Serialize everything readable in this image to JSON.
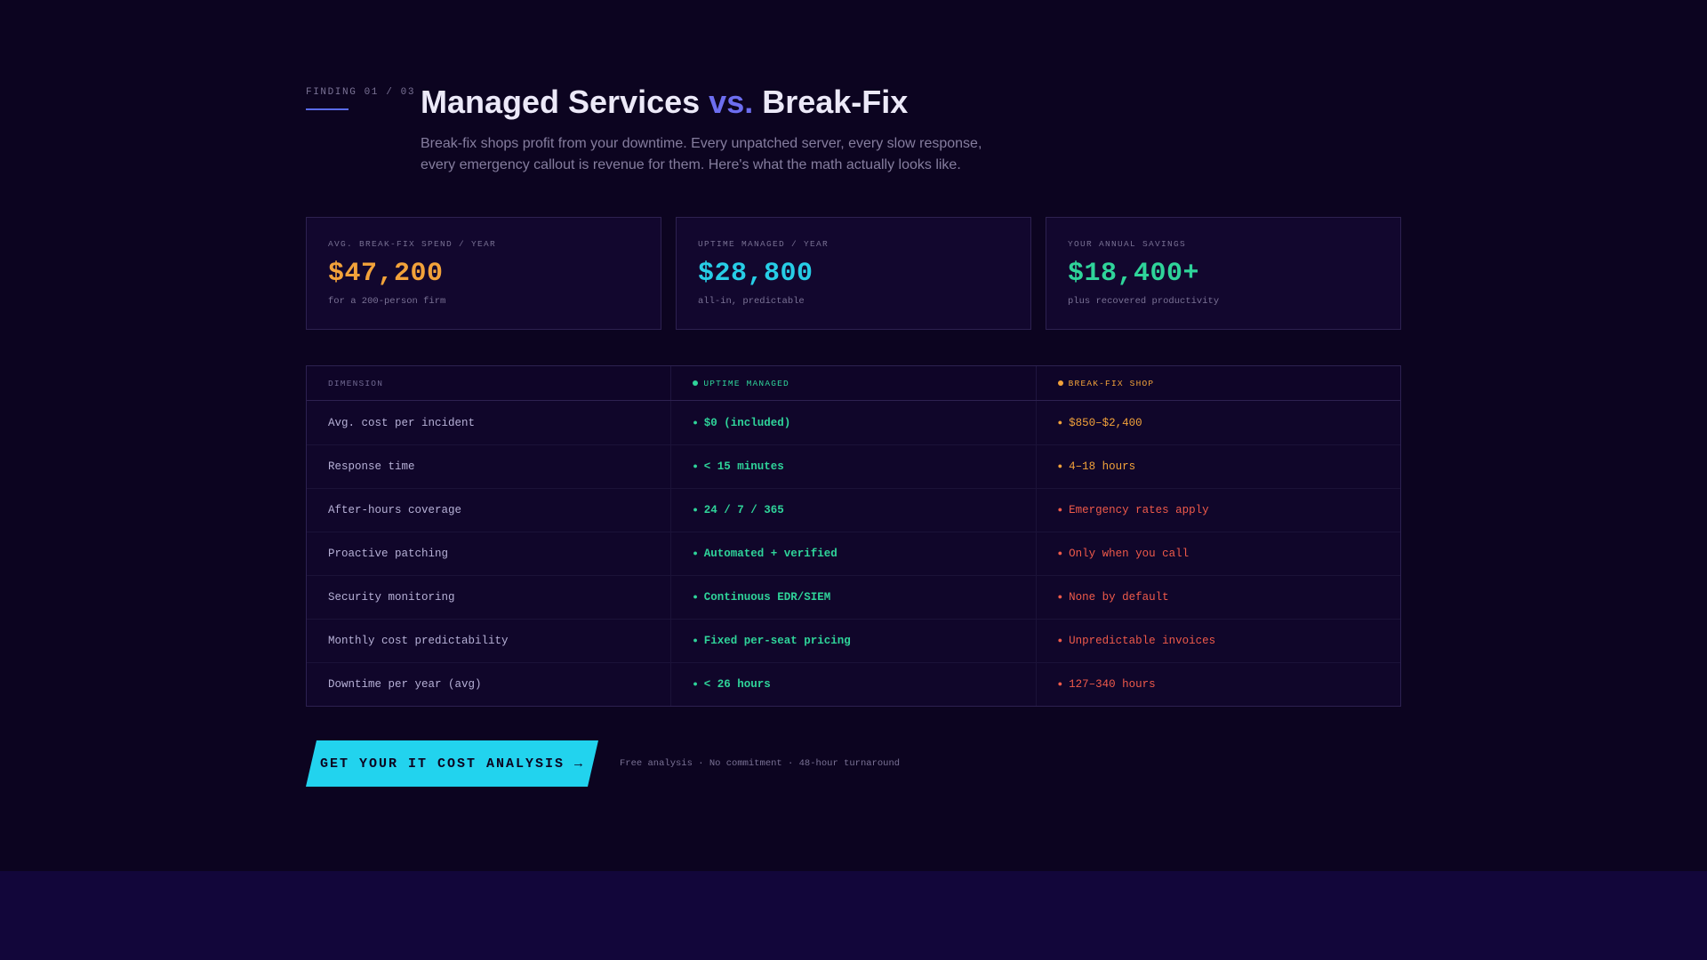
{
  "header": {
    "finding_label": "FINDING 01 / 03",
    "title_part1": "Managed Services ",
    "title_vs": "vs.",
    "title_part2": " Break-Fix",
    "subtitle": "Break-fix shops profit from your downtime. Every unpatched server, every slow response, every emergency callout is revenue for them. Here's what the math actually looks like."
  },
  "stats": [
    {
      "label": "AVG. BREAK-FIX SPEND / YEAR",
      "value": "$47,200",
      "note": "for a 200-person firm",
      "color": "#f2a23a"
    },
    {
      "label": "UPTIME MANAGED / YEAR",
      "value": "$28,800",
      "note": "all-in, predictable",
      "color": "#27cde6"
    },
    {
      "label": "YOUR ANNUAL SAVINGS",
      "value": "$18,400+",
      "note": "plus recovered productivity",
      "color": "#2fd49a"
    }
  ],
  "table": {
    "headers": {
      "dimension": "DIMENSION",
      "managed": "UPTIME MANAGED",
      "breakfix": "BREAK-FIX SHOP"
    },
    "rows": [
      {
        "dimension": "Avg. cost per incident",
        "managed": "$0 (included)",
        "breakfix": "$850–$2,400",
        "bf_tone": "orange"
      },
      {
        "dimension": "Response time",
        "managed": "< 15 minutes",
        "breakfix": "4–18 hours",
        "bf_tone": "orange"
      },
      {
        "dimension": "After-hours coverage",
        "managed": "24 / 7 / 365",
        "breakfix": "Emergency rates apply",
        "bf_tone": "red"
      },
      {
        "dimension": "Proactive patching",
        "managed": "Automated + verified",
        "breakfix": "Only when you call",
        "bf_tone": "red"
      },
      {
        "dimension": "Security monitoring",
        "managed": "Continuous EDR/SIEM",
        "breakfix": "None by default",
        "bf_tone": "red"
      },
      {
        "dimension": "Monthly cost predictability",
        "managed": "Fixed per-seat pricing",
        "breakfix": "Unpredictable invoices",
        "bf_tone": "red"
      },
      {
        "dimension": "Downtime per year (avg)",
        "managed": "< 26 hours",
        "breakfix": "127–340 hours",
        "bf_tone": "red"
      }
    ]
  },
  "cta": {
    "label": "GET YOUR IT COST ANALYSIS →",
    "note": "Free analysis · No commitment · 48-hour turnaround"
  },
  "colors": {
    "background": "#0c0420",
    "accent_cyan": "#22d3ee",
    "managed_green": "#2fd49a",
    "breakfix_orange": "#f2a23a",
    "breakfix_red": "#ef5a4a",
    "vs_purple": "#6d6ef0"
  }
}
